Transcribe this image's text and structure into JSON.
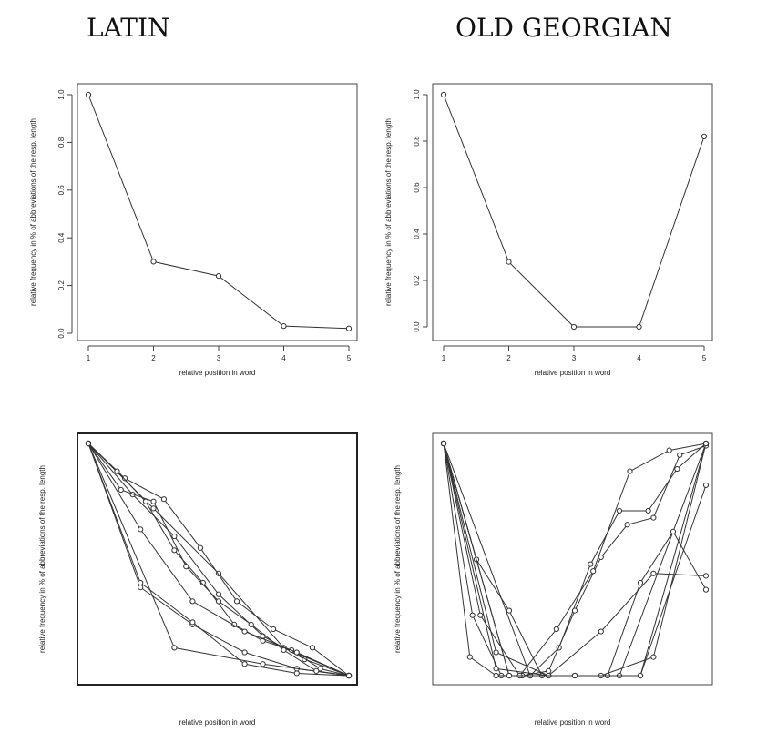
{
  "headings": {
    "left": "LATIN",
    "right": "OLD GEORGIAN"
  },
  "chart_data": [
    {
      "id": "latin-top",
      "type": "line",
      "xlabel": "relative position in word",
      "ylabel": "relative frequency in % of abbreviations of the resp. length",
      "xlim": [
        1,
        5
      ],
      "ylim": [
        0,
        1
      ],
      "x_ticks": [
        "1",
        "2",
        "3",
        "4",
        "5"
      ],
      "y_ticks": [
        "0.0",
        "0.2",
        "0.4",
        "0.6",
        "0.8",
        "1.0"
      ],
      "grid": false,
      "series": [
        {
          "x": [
            1,
            2,
            3,
            4,
            5
          ],
          "y": [
            1.0,
            0.3,
            0.24,
            0.03,
            0.02
          ]
        }
      ]
    },
    {
      "id": "georgian-top",
      "type": "line",
      "xlabel": "relative position in word",
      "ylabel": "relative frequency in % of abbreviations of the resp. length",
      "xlim": [
        1,
        5
      ],
      "ylim": [
        0,
        1
      ],
      "x_ticks": [
        "1",
        "2",
        "3",
        "4",
        "5"
      ],
      "y_ticks": [
        "0.0",
        "0.2",
        "0.4",
        "0.6",
        "0.8",
        "1.0"
      ],
      "grid": false,
      "series": [
        {
          "x": [
            1,
            2,
            3,
            4,
            5
          ],
          "y": [
            1.0,
            0.28,
            0.0,
            0.0,
            0.82
          ]
        }
      ]
    },
    {
      "id": "latin-bottom",
      "type": "line",
      "xlabel": "relative position in word",
      "ylabel": "relative frequency in % of abbreviations of the resp. length",
      "xlim": [
        0,
        1
      ],
      "ylim": [
        0,
        1
      ],
      "axes_ticks_shown": false,
      "grid": false,
      "series": [
        {
          "x": [
            0,
            0.2,
            0.4,
            0.6,
            0.8,
            1.0
          ],
          "y": [
            1.0,
            0.38,
            0.22,
            0.1,
            0.03,
            0.0
          ]
        },
        {
          "x": [
            0,
            0.25,
            0.5,
            0.75,
            1.0
          ],
          "y": [
            1.0,
            0.72,
            0.44,
            0.12,
            0.0
          ]
        },
        {
          "x": [
            0,
            0.33,
            0.67,
            1.0
          ],
          "y": [
            1.0,
            0.12,
            0.05,
            0.0
          ]
        },
        {
          "x": [
            0,
            0.14,
            0.29,
            0.43,
            0.57,
            0.71,
            0.86,
            1.0
          ],
          "y": [
            1.0,
            0.85,
            0.76,
            0.55,
            0.32,
            0.2,
            0.12,
            0.0
          ]
        },
        {
          "x": [
            0,
            0.17,
            0.33,
            0.5,
            0.67,
            0.83,
            1.0
          ],
          "y": [
            1.0,
            0.78,
            0.6,
            0.35,
            0.17,
            0.07,
            0.0
          ]
        },
        {
          "x": [
            0,
            0.11,
            0.22,
            0.33,
            0.44,
            0.56,
            0.67,
            0.78,
            0.89,
            1.0
          ],
          "y": [
            1.0,
            0.88,
            0.75,
            0.54,
            0.4,
            0.22,
            0.15,
            0.11,
            0.03,
            0.0
          ]
        },
        {
          "x": [
            0,
            0.2,
            0.4,
            0.6,
            0.8,
            1.0
          ],
          "y": [
            1.0,
            0.63,
            0.32,
            0.19,
            0.1,
            0.0
          ]
        },
        {
          "x": [
            0,
            0.125,
            0.25,
            0.375,
            0.5,
            0.625,
            0.75,
            0.875,
            1.0
          ],
          "y": [
            1.0,
            0.8,
            0.75,
            0.47,
            0.32,
            0.22,
            0.11,
            0.02,
            0.0
          ]
        },
        {
          "x": [
            0,
            0.2,
            0.4,
            0.6,
            0.8,
            1.0
          ],
          "y": [
            1.0,
            0.4,
            0.23,
            0.05,
            0.01,
            0.0
          ]
        }
      ]
    },
    {
      "id": "georgian-bottom",
      "type": "line",
      "xlabel": "relative position in word",
      "ylabel": "relative frequency in % of abbreviations of the resp. length",
      "xlim": [
        0,
        1
      ],
      "ylim": [
        0,
        1
      ],
      "axes_ticks_shown": false,
      "grid": false,
      "series": [
        {
          "x": [
            0,
            0.2,
            0.4,
            0.6,
            0.8,
            1.0
          ],
          "y": [
            1.0,
            0.1,
            0.0,
            0.0,
            0.08,
            1.0
          ]
        },
        {
          "x": [
            0,
            0.25,
            0.5,
            0.75,
            1.0
          ],
          "y": [
            1.0,
            0.0,
            0.0,
            0.0,
            0.82
          ]
        },
        {
          "x": [
            0,
            0.33,
            0.67,
            1.0
          ],
          "y": [
            1.0,
            0.0,
            0.0,
            1.0
          ]
        },
        {
          "x": [
            0,
            0.125,
            0.25,
            0.375,
            0.5,
            0.625,
            0.75,
            0.875,
            1.0
          ],
          "y": [
            1.0,
            0.5,
            0.28,
            0.0,
            0.0,
            0.0,
            0.4,
            0.62,
            0.37
          ]
        },
        {
          "x": [
            0,
            0.11,
            0.22,
            0.33,
            0.44,
            0.56,
            0.67,
            0.78,
            0.89,
            1.0
          ],
          "y": [
            1.0,
            0.26,
            0.0,
            0.0,
            0.12,
            0.48,
            0.71,
            0.71,
            0.89,
            1.0
          ]
        },
        {
          "x": [
            0,
            0.1,
            0.2,
            0.3,
            0.4,
            0.5,
            0.6,
            0.7,
            0.8,
            0.9,
            1.0
          ],
          "y": [
            1.0,
            0.08,
            0.0,
            0.0,
            0.02,
            0.28,
            0.51,
            0.65,
            0.68,
            0.95,
            0.99
          ]
        },
        {
          "x": [
            0,
            0.14,
            0.29,
            0.43,
            0.57,
            0.71,
            0.86,
            1.0
          ],
          "y": [
            1.0,
            0.26,
            0.0,
            0.2,
            0.45,
            0.88,
            0.97,
            1.0
          ]
        },
        {
          "x": [
            0,
            0.2,
            0.4,
            0.6,
            0.8,
            1.0
          ],
          "y": [
            1.0,
            0.03,
            0.0,
            0.19,
            0.44,
            0.43
          ]
        },
        {
          "x": [
            0,
            0.25,
            0.5,
            0.75,
            1.0
          ],
          "y": [
            1.0,
            0.0,
            0.0,
            0.0,
            1.0
          ]
        }
      ]
    }
  ]
}
